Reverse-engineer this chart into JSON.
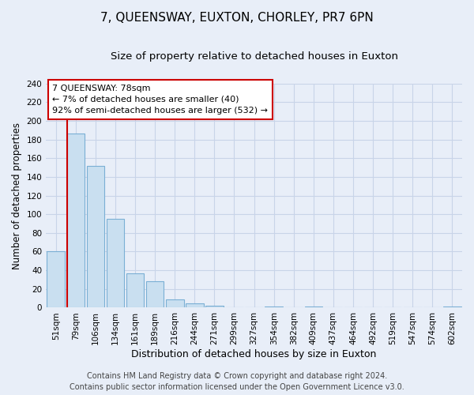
{
  "title": "7, QUEENSWAY, EUXTON, CHORLEY, PR7 6PN",
  "subtitle": "Size of property relative to detached houses in Euxton",
  "xlabel": "Distribution of detached houses by size in Euxton",
  "ylabel": "Number of detached properties",
  "categories": [
    "51sqm",
    "79sqm",
    "106sqm",
    "134sqm",
    "161sqm",
    "189sqm",
    "216sqm",
    "244sqm",
    "271sqm",
    "299sqm",
    "327sqm",
    "354sqm",
    "382sqm",
    "409sqm",
    "437sqm",
    "464sqm",
    "492sqm",
    "519sqm",
    "547sqm",
    "574sqm",
    "602sqm"
  ],
  "values": [
    60,
    186,
    152,
    95,
    37,
    28,
    9,
    5,
    2,
    0,
    0,
    1,
    0,
    1,
    0,
    0,
    0,
    0,
    0,
    0,
    1
  ],
  "bar_color": "#c9dff0",
  "bar_edge_color": "#7aafd4",
  "marker_line_color": "#cc0000",
  "ylim": [
    0,
    240
  ],
  "yticks": [
    0,
    20,
    40,
    60,
    80,
    100,
    120,
    140,
    160,
    180,
    200,
    220,
    240
  ],
  "annotation_title": "7 QUEENSWAY: 78sqm",
  "annotation_line1": "← 7% of detached houses are smaller (40)",
  "annotation_line2": "92% of semi-detached houses are larger (532) →",
  "annotation_box_color": "#ffffff",
  "annotation_box_edge": "#cc0000",
  "footer_line1": "Contains HM Land Registry data © Crown copyright and database right 2024.",
  "footer_line2": "Contains public sector information licensed under the Open Government Licence v3.0.",
  "background_color": "#e8eef8",
  "grid_color": "#c8d4e8",
  "title_fontsize": 11,
  "subtitle_fontsize": 9.5,
  "xlabel_fontsize": 9,
  "ylabel_fontsize": 8.5,
  "tick_fontsize": 7.5,
  "footer_fontsize": 7,
  "annotation_fontsize": 8
}
